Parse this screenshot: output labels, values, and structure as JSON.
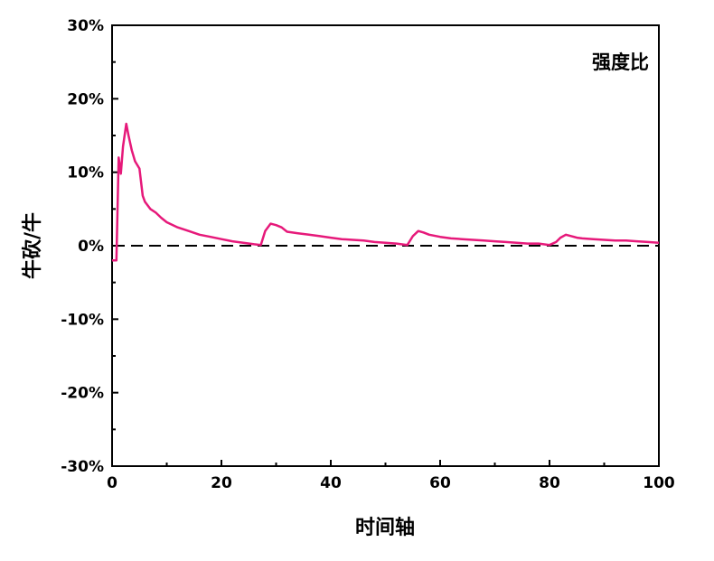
{
  "chart_data": {
    "type": "line",
    "xlabel": "时间轴",
    "ylabel": "牛砍/牛",
    "legend": "强度比",
    "legend_position": "top-right",
    "xlim": [
      0,
      100
    ],
    "ylim": [
      -30,
      30
    ],
    "x_ticks": [
      0,
      20,
      40,
      60,
      80,
      100
    ],
    "x_tick_labels": [
      "0",
      "20",
      "40",
      "60",
      "80",
      "100"
    ],
    "y_ticks": [
      -30,
      -20,
      -10,
      0,
      10,
      20,
      30
    ],
    "y_tick_labels": [
      "-30%",
      "-20%",
      "-10%",
      "0%",
      "10%",
      "20%",
      "30%"
    ],
    "reference_line": {
      "y": 0,
      "style": "dashed",
      "color": "#000000"
    },
    "grid": false,
    "series": [
      {
        "color": "#e6197a",
        "x": [
          0,
          0.8,
          1.2,
          1.6,
          2.0,
          2.6,
          3.0,
          3.6,
          4.2,
          5.0,
          5.6,
          6.0,
          7.0,
          8.0,
          9.0,
          10.0,
          12.0,
          14.0,
          16.0,
          18.0,
          20.0,
          22.0,
          24.0,
          26.0,
          27.2,
          28.0,
          29.0,
          30.0,
          31.0,
          32.0,
          34.0,
          36.0,
          38.0,
          40.0,
          42.0,
          44.0,
          46.0,
          48.0,
          50.0,
          52.0,
          54.0,
          55.0,
          56.0,
          57.0,
          58.0,
          60.0,
          62.0,
          64.0,
          66.0,
          68.0,
          70.0,
          72.0,
          74.0,
          76.0,
          78.0,
          80.0,
          81.2,
          82.0,
          83.0,
          84.0,
          85.0,
          86.0,
          88.0,
          90.0,
          92.0,
          94.0,
          96.0,
          98.0,
          100.0
        ],
        "y": [
          -2.0,
          -2.0,
          12.0,
          9.8,
          13.5,
          16.6,
          15.0,
          13.0,
          11.5,
          10.5,
          6.8,
          6.0,
          5.0,
          4.5,
          3.8,
          3.2,
          2.5,
          2.0,
          1.5,
          1.2,
          0.9,
          0.6,
          0.4,
          0.2,
          0.1,
          2.0,
          3.0,
          2.8,
          2.5,
          1.9,
          1.7,
          1.5,
          1.3,
          1.1,
          0.9,
          0.8,
          0.7,
          0.5,
          0.4,
          0.3,
          0.1,
          1.3,
          2.0,
          1.8,
          1.5,
          1.2,
          1.0,
          0.9,
          0.8,
          0.7,
          0.6,
          0.5,
          0.4,
          0.3,
          0.3,
          0.1,
          0.5,
          1.1,
          1.5,
          1.3,
          1.1,
          1.0,
          0.9,
          0.8,
          0.7,
          0.7,
          0.6,
          0.5,
          0.4
        ]
      }
    ]
  }
}
